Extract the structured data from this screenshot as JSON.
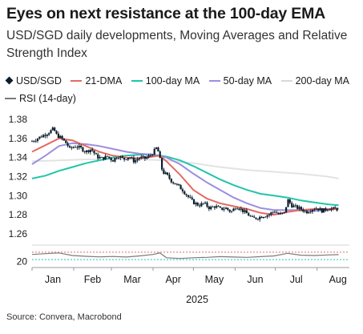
{
  "title": "Eyes on next resistance at the 100-day EMA",
  "subtitle": "USD/SGD daily developments, Moving Averages and Relative Strength Index",
  "source": "Source: Convera, Macrobond",
  "colors": {
    "candle": "#0b1e2d",
    "dma21": "#e36b62",
    "ma100": "#20c5a9",
    "ma50": "#9b8fe0",
    "ma200": "#e3e3e3",
    "rsi": "#7a7a7a",
    "rsi_upper": "#e36b62",
    "rsi_lower": "#20c5a9"
  },
  "legend": [
    {
      "name": "USD/SGD",
      "marker": "diamond",
      "color": "#0b1e2d"
    },
    {
      "name": "21-DMA",
      "marker": "line",
      "color": "#e36b62"
    },
    {
      "name": "100-day MA",
      "marker": "line",
      "color": "#20c5a9"
    },
    {
      "name": "50-day MA",
      "marker": "line",
      "color": "#9b8fe0"
    },
    {
      "name": "200-day MA",
      "marker": "line",
      "color": "#e3e3e3"
    },
    {
      "name": "RSI (14-day)",
      "marker": "line",
      "color": "#7a7a7a"
    }
  ],
  "chart_data": {
    "type": "line",
    "x_axis_label": "2025",
    "x_ticks": [
      "Jan",
      "Feb",
      "Mar",
      "Apr",
      "May",
      "Jun",
      "Jul",
      "Aug"
    ],
    "x_range_days": [
      0,
      236
    ],
    "y_ticks": [
      "1.38",
      "1.36",
      "1.34",
      "1.32",
      "1.30",
      "1.28",
      "1.26"
    ],
    "ylim": [
      1.255,
      1.385
    ],
    "rsi_panel": {
      "y_tick": "20",
      "ylim": [
        0,
        100
      ],
      "upper_band": 70,
      "lower_band": 30
    },
    "series": [
      {
        "name": "USD/SGD",
        "points": [
          [
            0,
            1.357
          ],
          [
            4,
            1.36
          ],
          [
            8,
            1.363
          ],
          [
            12,
            1.366
          ],
          [
            16,
            1.37
          ],
          [
            18,
            1.364
          ],
          [
            22,
            1.36
          ],
          [
            26,
            1.354
          ],
          [
            28,
            1.349
          ],
          [
            32,
            1.352
          ],
          [
            36,
            1.35
          ],
          [
            40,
            1.346
          ],
          [
            44,
            1.349
          ],
          [
            48,
            1.341
          ],
          [
            52,
            1.339
          ],
          [
            56,
            1.341
          ],
          [
            60,
            1.337
          ],
          [
            64,
            1.342
          ],
          [
            68,
            1.338
          ],
          [
            72,
            1.341
          ],
          [
            76,
            1.336
          ],
          [
            80,
            1.34
          ],
          [
            84,
            1.339
          ],
          [
            88,
            1.342
          ],
          [
            91,
            1.347
          ],
          [
            93,
            1.351
          ],
          [
            95,
            1.339
          ],
          [
            97,
            1.325
          ],
          [
            100,
            1.322
          ],
          [
            104,
            1.315
          ],
          [
            108,
            1.311
          ],
          [
            112,
            1.306
          ],
          [
            116,
            1.299
          ],
          [
            120,
            1.293
          ],
          [
            124,
            1.29
          ],
          [
            128,
            1.292
          ],
          [
            132,
            1.287
          ],
          [
            136,
            1.289
          ],
          [
            140,
            1.286
          ],
          [
            144,
            1.287
          ],
          [
            148,
            1.283
          ],
          [
            152,
            1.289
          ],
          [
            156,
            1.285
          ],
          [
            160,
            1.281
          ],
          [
            164,
            1.276
          ],
          [
            168,
            1.277
          ],
          [
            172,
            1.279
          ],
          [
            176,
            1.28
          ],
          [
            180,
            1.284
          ],
          [
            184,
            1.28
          ],
          [
            188,
            1.282
          ],
          [
            190,
            1.296
          ],
          [
            193,
            1.29
          ],
          [
            196,
            1.288
          ],
          [
            200,
            1.286
          ],
          [
            204,
            1.283
          ],
          [
            208,
            1.286
          ],
          [
            212,
            1.287
          ],
          [
            216,
            1.284
          ],
          [
            220,
            1.287
          ],
          [
            224,
            1.286
          ],
          [
            228,
            1.286
          ]
        ]
      },
      {
        "name": "21-DMA",
        "points": [
          [
            0,
            1.346
          ],
          [
            10,
            1.353
          ],
          [
            20,
            1.36
          ],
          [
            30,
            1.358
          ],
          [
            40,
            1.352
          ],
          [
            50,
            1.346
          ],
          [
            60,
            1.342
          ],
          [
            70,
            1.34
          ],
          [
            80,
            1.339
          ],
          [
            90,
            1.341
          ],
          [
            95,
            1.342
          ],
          [
            100,
            1.336
          ],
          [
            110,
            1.322
          ],
          [
            120,
            1.306
          ],
          [
            130,
            1.297
          ],
          [
            140,
            1.292
          ],
          [
            150,
            1.289
          ],
          [
            160,
            1.286
          ],
          [
            170,
            1.282
          ],
          [
            180,
            1.28
          ],
          [
            190,
            1.283
          ],
          [
            200,
            1.285
          ],
          [
            210,
            1.286
          ],
          [
            220,
            1.286
          ],
          [
            228,
            1.286
          ]
        ]
      },
      {
        "name": "100-day MA",
        "points": [
          [
            0,
            1.318
          ],
          [
            10,
            1.321
          ],
          [
            20,
            1.326
          ],
          [
            30,
            1.33
          ],
          [
            40,
            1.334
          ],
          [
            50,
            1.337
          ],
          [
            60,
            1.34
          ],
          [
            70,
            1.342
          ],
          [
            80,
            1.343
          ],
          [
            90,
            1.343
          ],
          [
            100,
            1.341
          ],
          [
            110,
            1.337
          ],
          [
            120,
            1.331
          ],
          [
            130,
            1.324
          ],
          [
            140,
            1.317
          ],
          [
            150,
            1.311
          ],
          [
            160,
            1.306
          ],
          [
            170,
            1.302
          ],
          [
            180,
            1.3
          ],
          [
            190,
            1.298
          ],
          [
            200,
            1.295
          ],
          [
            210,
            1.293
          ],
          [
            220,
            1.291
          ],
          [
            228,
            1.29
          ]
        ]
      },
      {
        "name": "50-day MA",
        "points": [
          [
            0,
            1.333
          ],
          [
            10,
            1.342
          ],
          [
            20,
            1.352
          ],
          [
            30,
            1.355
          ],
          [
            40,
            1.354
          ],
          [
            50,
            1.352
          ],
          [
            60,
            1.349
          ],
          [
            70,
            1.346
          ],
          [
            80,
            1.344
          ],
          [
            90,
            1.343
          ],
          [
            100,
            1.34
          ],
          [
            110,
            1.333
          ],
          [
            120,
            1.323
          ],
          [
            130,
            1.314
          ],
          [
            140,
            1.306
          ],
          [
            150,
            1.298
          ],
          [
            160,
            1.292
          ],
          [
            170,
            1.287
          ],
          [
            180,
            1.285
          ],
          [
            190,
            1.285
          ],
          [
            200,
            1.285
          ],
          [
            210,
            1.284
          ],
          [
            220,
            1.285
          ],
          [
            228,
            1.287
          ]
        ]
      },
      {
        "name": "200-day MA",
        "points": [
          [
            0,
            1.336
          ],
          [
            20,
            1.337
          ],
          [
            40,
            1.338
          ],
          [
            60,
            1.338
          ],
          [
            80,
            1.338
          ],
          [
            100,
            1.337
          ],
          [
            120,
            1.334
          ],
          [
            140,
            1.33
          ],
          [
            160,
            1.327
          ],
          [
            180,
            1.325
          ],
          [
            200,
            1.323
          ],
          [
            220,
            1.32
          ],
          [
            228,
            1.318
          ]
        ]
      },
      {
        "name": "RSI (14-day)",
        "points": [
          [
            0,
            58
          ],
          [
            10,
            62
          ],
          [
            20,
            66
          ],
          [
            30,
            52
          ],
          [
            40,
            48
          ],
          [
            50,
            45
          ],
          [
            60,
            47
          ],
          [
            70,
            44
          ],
          [
            80,
            50
          ],
          [
            90,
            58
          ],
          [
            95,
            66
          ],
          [
            100,
            40
          ],
          [
            110,
            36
          ],
          [
            120,
            40
          ],
          [
            130,
            42
          ],
          [
            140,
            46
          ],
          [
            150,
            44
          ],
          [
            160,
            42
          ],
          [
            170,
            46
          ],
          [
            180,
            50
          ],
          [
            190,
            64
          ],
          [
            200,
            54
          ],
          [
            210,
            52
          ],
          [
            220,
            55
          ],
          [
            228,
            57
          ]
        ]
      }
    ]
  }
}
